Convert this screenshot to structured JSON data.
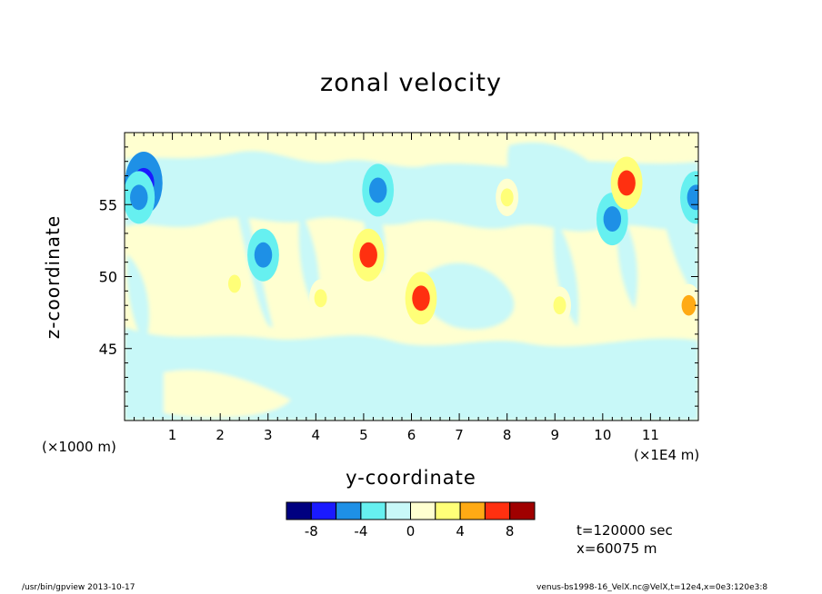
{
  "chart_data": {
    "type": "heatmap",
    "title": "zonal velocity",
    "xlabel": "y-coordinate",
    "ylabel": "z-coordinate",
    "x_unit_left": "(×1000 m)",
    "x_unit_right": "(×1E4 m)",
    "x_ticks": [
      "1",
      "2",
      "3",
      "4",
      "5",
      "6",
      "7",
      "8",
      "9",
      "10",
      "11"
    ],
    "x_tick_values": [
      1,
      2,
      3,
      4,
      5,
      6,
      7,
      8,
      9,
      10,
      11
    ],
    "y_ticks": [
      "45",
      "50",
      "55"
    ],
    "y_tick_values": [
      45,
      50,
      55
    ],
    "xlim": [
      0,
      12
    ],
    "ylim": [
      40,
      60
    ],
    "colorbar": {
      "levels": [
        -10,
        -8,
        -6,
        -4,
        -2,
        0,
        2,
        4,
        6,
        8,
        10
      ],
      "tick_labels": [
        "-8",
        "-4",
        "0",
        "4",
        "8"
      ],
      "tick_values": [
        -8,
        -4,
        0,
        4,
        8
      ],
      "colors": [
        "#000080",
        "#1a1aff",
        "#1e90e6",
        "#66f0f0",
        "#c8f8f8",
        "#ffffd0",
        "#ffff78",
        "#ffaa14",
        "#ff3010",
        "#a00000"
      ]
    },
    "features": [
      {
        "y": 0.4,
        "z": 56.5,
        "value": -8
      },
      {
        "y": 0.3,
        "z": 55.5,
        "value": -6
      },
      {
        "y": 5.3,
        "z": 56.0,
        "value": -6
      },
      {
        "y": 10.2,
        "z": 54.0,
        "value": -6
      },
      {
        "y": 2.9,
        "z": 51.5,
        "value": -6
      },
      {
        "y": 11.95,
        "z": 55.5,
        "value": -6
      },
      {
        "y": 10.5,
        "z": 56.5,
        "value": 6
      },
      {
        "y": 5.1,
        "z": 51.5,
        "value": 6
      },
      {
        "y": 6.2,
        "z": 48.5,
        "value": 6
      },
      {
        "y": 11.8,
        "z": 48.0,
        "value": 4
      },
      {
        "y": 8.0,
        "z": 55.5,
        "value": 3
      },
      {
        "y": 4.1,
        "z": 48.5,
        "value": 3
      },
      {
        "y": 2.3,
        "z": 49.5,
        "value": 3
      },
      {
        "y": 9.1,
        "z": 48.0,
        "value": 3
      }
    ],
    "grid": false
  },
  "annotations": {
    "time": "t=120000 sec",
    "position": "x=60075 m"
  },
  "footer": {
    "left": "/usr/bin/gpview   2013-10-17",
    "right": "venus-bs1998-16_VelX.nc@VelX,t=12e4,x=0e3:120e3:8"
  }
}
